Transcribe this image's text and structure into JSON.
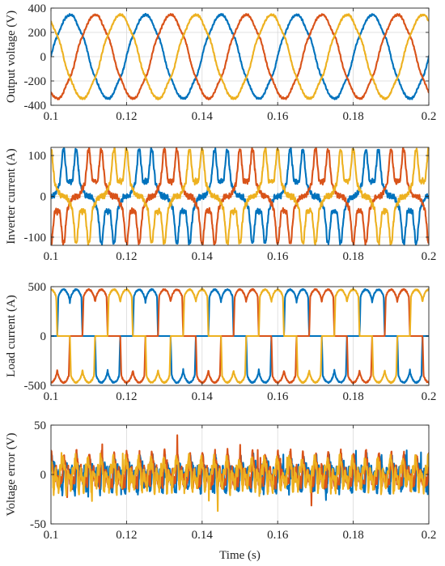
{
  "chart_data": [
    {
      "type": "line",
      "ylabel": "Output voltage (V)",
      "xlabel": "",
      "xlim": [
        0.1,
        0.2
      ],
      "ylim": [
        -400,
        400
      ],
      "xticks": [
        0.1,
        0.12,
        0.14,
        0.16,
        0.18,
        0.2
      ],
      "yticks": [
        -400,
        -200,
        0,
        200,
        400
      ],
      "grid": true,
      "waveform": "sinusoidal, 3-phase, 50 Hz, amplitude ~340 V with slight ripple",
      "frequency_hz": 50,
      "amplitude": 340,
      "series": [
        {
          "phase_deg": 0,
          "color": "#0072BD"
        },
        {
          "phase_deg": -120,
          "color": "#D95319"
        },
        {
          "phase_deg": 120,
          "color": "#EDB120"
        }
      ]
    },
    {
      "type": "line",
      "ylabel": "Inverter current (A)",
      "xlabel": "",
      "xlim": [
        0.1,
        0.2
      ],
      "ylim": [
        -120,
        120
      ],
      "xticks": [
        0.1,
        0.12,
        0.14,
        0.16,
        0.18,
        0.2
      ],
      "yticks": [
        -100,
        0,
        100
      ],
      "grid": true,
      "waveform": "distorted 3-phase, peak ~115 A with plateau ~60 A",
      "frequency_hz": 50,
      "amplitude": 115,
      "series": [
        {
          "phase_deg": 0,
          "color": "#0072BD"
        },
        {
          "phase_deg": -120,
          "color": "#D95319"
        },
        {
          "phase_deg": 120,
          "color": "#EDB120"
        }
      ]
    },
    {
      "type": "line",
      "ylabel": "Load current (A)",
      "xlabel": "",
      "xlim": [
        0.1,
        0.2
      ],
      "ylim": [
        -500,
        500
      ],
      "xticks": [
        0.1,
        0.12,
        0.14,
        0.16,
        0.18,
        0.2
      ],
      "yticks": [
        -500,
        0,
        500
      ],
      "grid": true,
      "waveform": "six-pulse rectifier current, two humps ~460 A per conduction interval",
      "frequency_hz": 50,
      "amplitude": 470,
      "series": [
        {
          "phase_deg": 0,
          "color": "#0072BD"
        },
        {
          "phase_deg": -120,
          "color": "#D95319"
        },
        {
          "phase_deg": 120,
          "color": "#EDB120"
        }
      ]
    },
    {
      "type": "line",
      "ylabel": "Voltage error (V)",
      "xlabel": "Time (s)",
      "xlim": [
        0.1,
        0.2
      ],
      "ylim": [
        -50,
        50
      ],
      "xticks": [
        0.1,
        0.12,
        0.14,
        0.16,
        0.18,
        0.2
      ],
      "yticks": [
        -50,
        0,
        50
      ],
      "grid": true,
      "waveform": "oscillatory error, mostly within ±20 V, spikes to ~±30 V",
      "frequency_hz": 50,
      "amplitude": 20,
      "series": [
        {
          "phase_deg": 0,
          "color": "#0072BD"
        },
        {
          "phase_deg": -120,
          "color": "#D95319"
        },
        {
          "phase_deg": 120,
          "color": "#EDB120"
        }
      ]
    }
  ]
}
